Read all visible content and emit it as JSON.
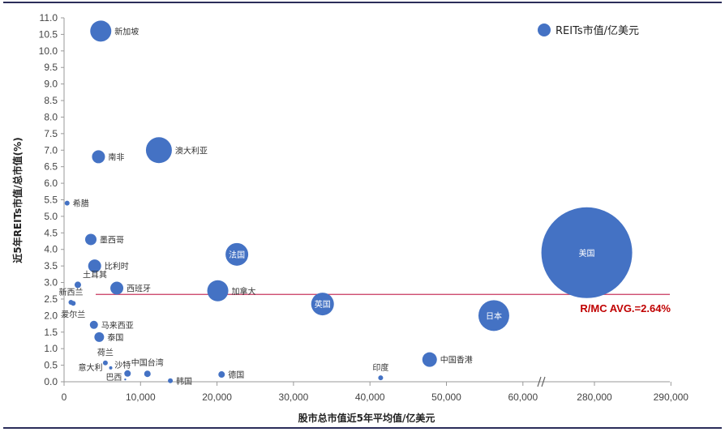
{
  "chart_data": {
    "type": "scatter",
    "subtype": "bubble",
    "xlabel": "股市总市值近5年平均值/亿美元",
    "ylabel": "近5年REITs市值/总市值(%)",
    "legend": {
      "label": "REITs市值/亿美元",
      "placement": "top-right"
    },
    "ylim": [
      0,
      11
    ],
    "yticks": [
      "0.0",
      "0.5",
      "1.0",
      "1.5",
      "2.0",
      "2.5",
      "3.0",
      "3.5",
      "4.0",
      "4.5",
      "5.0",
      "5.5",
      "6.0",
      "6.5",
      "7.0",
      "7.5",
      "8.0",
      "8.5",
      "9.0",
      "9.5",
      "10.0",
      "10.5",
      "11.0"
    ],
    "xaxis_break": {
      "from": 60000,
      "to": 270000
    },
    "xticks": [
      {
        "value": 0,
        "label": "0"
      },
      {
        "value": 10000,
        "label": "10,000"
      },
      {
        "value": 20000,
        "label": "20,000"
      },
      {
        "value": 30000,
        "label": "30,000"
      },
      {
        "value": 40000,
        "label": "40,000"
      },
      {
        "value": 50000,
        "label": "50,000"
      },
      {
        "value": 60000,
        "label": "60,000"
      },
      {
        "value": 280000,
        "label": "280,000"
      },
      {
        "value": 290000,
        "label": "290,000"
      }
    ],
    "reference_line": {
      "value": 2.64,
      "label": "R/MC AVG.=2.64%"
    },
    "points": [
      {
        "name": "新加坡",
        "x": 4800,
        "y": 10.6,
        "size": 169,
        "label_pos": "right"
      },
      {
        "name": "澳大利亚",
        "x": 12400,
        "y": 7.0,
        "size": 256,
        "label_pos": "right"
      },
      {
        "name": "南非",
        "x": 4500,
        "y": 6.8,
        "size": 64,
        "label_pos": "right"
      },
      {
        "name": "希腊",
        "x": 400,
        "y": 5.4,
        "size": 9,
        "label_pos": "right"
      },
      {
        "name": "墨西哥",
        "x": 3500,
        "y": 4.3,
        "size": 49,
        "label_pos": "right"
      },
      {
        "name": "法国",
        "x": 22600,
        "y": 3.85,
        "size": 196,
        "label_pos": "inside"
      },
      {
        "name": "比利时",
        "x": 4000,
        "y": 3.5,
        "size": 64,
        "label_pos": "right"
      },
      {
        "name": "土耳其",
        "x": 1800,
        "y": 2.93,
        "size": 16,
        "label_pos": "above-right"
      },
      {
        "name": "西班牙",
        "x": 6900,
        "y": 2.83,
        "size": 64,
        "label_pos": "right"
      },
      {
        "name": "加拿大",
        "x": 20100,
        "y": 2.75,
        "size": 169,
        "label_pos": "right"
      },
      {
        "name": "新西兰",
        "x": 900,
        "y": 2.4,
        "size": 9,
        "label_pos": "above"
      },
      {
        "name": "爱尔兰",
        "x": 1200,
        "y": 2.37,
        "size": 9,
        "label_pos": "below"
      },
      {
        "name": "英国",
        "x": 33800,
        "y": 2.35,
        "size": 196,
        "label_pos": "inside"
      },
      {
        "name": "马来西亚",
        "x": 3900,
        "y": 1.72,
        "size": 25,
        "label_pos": "right"
      },
      {
        "name": "泰国",
        "x": 4600,
        "y": 1.35,
        "size": 36,
        "label_pos": "right"
      },
      {
        "name": "日本",
        "x": 56200,
        "y": 2.0,
        "size": 361,
        "label_pos": "inside"
      },
      {
        "name": "美国",
        "x": 279000,
        "y": 3.9,
        "size": 3136,
        "label_pos": "inside"
      },
      {
        "name": "中国香港",
        "x": 47800,
        "y": 0.67,
        "size": 81,
        "label_pos": "right"
      },
      {
        "name": "印度",
        "x": 41400,
        "y": 0.12,
        "size": 9,
        "label_pos": "above"
      },
      {
        "name": "荷兰",
        "x": 5400,
        "y": 0.57,
        "size": 9,
        "label_pos": "above"
      },
      {
        "name": "意大利",
        "x": 6100,
        "y": 0.42,
        "size": 4,
        "label_pos": "left"
      },
      {
        "name": "沙特",
        "x": 8300,
        "y": 0.25,
        "size": 16,
        "label_pos": "above-left"
      },
      {
        "name": "中国台湾",
        "x": 10900,
        "y": 0.24,
        "size": 16,
        "label_pos": "above"
      },
      {
        "name": "巴西",
        "x": 8000,
        "y": 0.07,
        "size": 1,
        "label_pos": "left"
      },
      {
        "name": "韩国",
        "x": 13900,
        "y": 0.03,
        "size": 9,
        "label_pos": "right"
      },
      {
        "name": "德国",
        "x": 20600,
        "y": 0.22,
        "size": 16,
        "label_pos": "right"
      }
    ]
  },
  "colors": {
    "bubble": "#4472C4",
    "avg_line": "#C8365E",
    "avg_label": "#C00000",
    "frame": "#2B2D5A"
  }
}
